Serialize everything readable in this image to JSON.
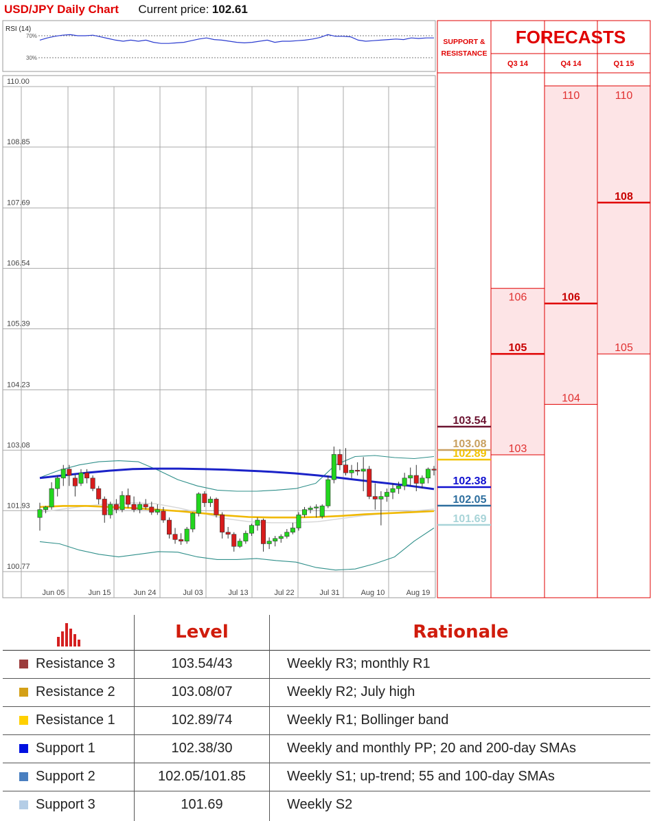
{
  "header": {
    "title": "USD/JPY Daily Chart",
    "price_label": "Current price:",
    "price_value": "102.61"
  },
  "rsi": {
    "label": "RSI (14)",
    "upper": "70%",
    "lower": "30%",
    "values": [
      62,
      66,
      69,
      71,
      72,
      70,
      70,
      71,
      68,
      65,
      62,
      60,
      62,
      60,
      62,
      58,
      56,
      56,
      57,
      58,
      61,
      64,
      66,
      63,
      62,
      60,
      58,
      57,
      58,
      60,
      62,
      58,
      60,
      60,
      61,
      62,
      64,
      67,
      72,
      69,
      69,
      68,
      62,
      60,
      61,
      62,
      63,
      64,
      63,
      66,
      65,
      66,
      66
    ],
    "color": "#2a3bd0"
  },
  "chart_data": {
    "type": "candlestick",
    "title": "USD/JPY Daily Chart",
    "y_ticks": [
      "110.00",
      "108.85",
      "107.69",
      "106.54",
      "105.39",
      "104.23",
      "103.08",
      "101.93",
      "100.77"
    ],
    "ylim": [
      100.77,
      110.0
    ],
    "x_ticks": [
      "Jun 05",
      "Jun 15",
      "Jun 24",
      "Jul 03",
      "Jul 13",
      "Jul 22",
      "Jul 31",
      "Aug 10",
      "Aug 19"
    ],
    "grid": true,
    "candles": [
      [
        101.8,
        102.08,
        101.55,
        101.95
      ],
      [
        101.95,
        102.02,
        101.88,
        102.0
      ],
      [
        102.0,
        102.47,
        101.95,
        102.35
      ],
      [
        102.35,
        102.6,
        102.2,
        102.55
      ],
      [
        102.55,
        102.8,
        102.4,
        102.72
      ],
      [
        102.72,
        102.8,
        102.4,
        102.6
      ],
      [
        102.55,
        102.62,
        102.2,
        102.4
      ],
      [
        102.45,
        102.72,
        102.4,
        102.65
      ],
      [
        102.65,
        102.72,
        102.45,
        102.55
      ],
      [
        102.55,
        102.6,
        102.3,
        102.35
      ],
      [
        102.35,
        102.4,
        102.05,
        102.15
      ],
      [
        102.15,
        102.2,
        101.7,
        101.85
      ],
      [
        101.85,
        102.1,
        101.78,
        102.05
      ],
      [
        102.05,
        102.15,
        101.88,
        101.95
      ],
      [
        101.95,
        102.3,
        101.9,
        102.22
      ],
      [
        102.22,
        102.35,
        101.98,
        102.05
      ],
      [
        102.05,
        102.2,
        101.9,
        101.95
      ],
      [
        101.95,
        102.1,
        101.88,
        102.05
      ],
      [
        102.05,
        102.15,
        101.95,
        102.0
      ],
      [
        102.0,
        102.1,
        101.85,
        101.9
      ],
      [
        101.9,
        102.05,
        101.85,
        101.95
      ],
      [
        101.92,
        102.0,
        101.7,
        101.75
      ],
      [
        101.75,
        101.8,
        101.4,
        101.48
      ],
      [
        101.48,
        101.6,
        101.3,
        101.38
      ],
      [
        101.38,
        101.5,
        101.28,
        101.35
      ],
      [
        101.35,
        101.62,
        101.3,
        101.58
      ],
      [
        101.58,
        101.9,
        101.52,
        101.88
      ],
      [
        101.88,
        102.28,
        101.82,
        102.25
      ],
      [
        102.25,
        102.3,
        102.0,
        102.08
      ],
      [
        102.08,
        102.2,
        102.0,
        102.15
      ],
      [
        102.15,
        102.18,
        101.8,
        101.85
      ],
      [
        101.85,
        101.9,
        101.4,
        101.52
      ],
      [
        101.52,
        101.62,
        101.4,
        101.48
      ],
      [
        101.48,
        101.52,
        101.15,
        101.25
      ],
      [
        101.25,
        101.4,
        101.22,
        101.35
      ],
      [
        101.35,
        101.55,
        101.3,
        101.5
      ],
      [
        101.5,
        101.68,
        101.45,
        101.65
      ],
      [
        101.65,
        101.8,
        101.55,
        101.75
      ],
      [
        101.75,
        101.78,
        101.15,
        101.3
      ],
      [
        101.3,
        101.42,
        101.2,
        101.35
      ],
      [
        101.35,
        101.45,
        101.25,
        101.4
      ],
      [
        101.4,
        101.48,
        101.32,
        101.44
      ],
      [
        101.44,
        101.58,
        101.4,
        101.52
      ],
      [
        101.52,
        101.7,
        101.48,
        101.6
      ],
      [
        101.6,
        101.9,
        101.55,
        101.85
      ],
      [
        101.85,
        102.0,
        101.8,
        101.95
      ],
      [
        101.95,
        102.02,
        101.88,
        101.98
      ],
      [
        101.98,
        102.05,
        101.8,
        102.0
      ],
      [
        101.82,
        102.05,
        101.78,
        102.02
      ],
      [
        102.02,
        102.6,
        101.98,
        102.52
      ],
      [
        102.52,
        103.15,
        102.45,
        103.0
      ],
      [
        103.0,
        103.1,
        102.7,
        102.8
      ],
      [
        102.8,
        103.12,
        102.6,
        102.65
      ],
      [
        102.65,
        102.8,
        102.55,
        102.7
      ],
      [
        102.7,
        102.85,
        102.6,
        102.68
      ],
      [
        102.68,
        102.95,
        102.3,
        102.72
      ],
      [
        102.72,
        102.78,
        102.15,
        102.2
      ],
      [
        102.2,
        102.45,
        101.95,
        102.15
      ],
      [
        102.15,
        102.3,
        101.65,
        102.2
      ],
      [
        102.2,
        102.35,
        102.1,
        102.28
      ],
      [
        102.28,
        102.45,
        102.15,
        102.35
      ],
      [
        102.35,
        102.48,
        102.25,
        102.4
      ],
      [
        102.4,
        102.65,
        102.32,
        102.55
      ],
      [
        102.55,
        102.75,
        102.4,
        102.6
      ],
      [
        102.6,
        102.8,
        102.3,
        102.45
      ],
      [
        102.45,
        102.6,
        102.35,
        102.55
      ],
      [
        102.55,
        102.75,
        102.45,
        102.72
      ],
      [
        102.72,
        102.78,
        102.6,
        102.7
      ]
    ],
    "sma_blue": [
      102.55,
      102.6,
      102.65,
      102.69,
      102.72,
      102.73,
      102.73,
      102.72,
      102.71,
      102.69,
      102.67,
      102.64,
      102.6,
      102.55,
      102.5,
      102.45,
      102.4,
      102.34
    ],
    "sma_yellow": [
      102.0,
      102.02,
      102.02,
      102.0,
      101.98,
      101.95,
      101.92,
      101.88,
      101.84,
      101.81,
      101.8,
      101.8,
      101.81,
      101.83,
      101.86,
      101.88,
      101.9,
      101.92
    ],
    "sma_gray": [
      101.9,
      101.96,
      102.02,
      102.06,
      102.08,
      102.06,
      101.98,
      101.88,
      101.78,
      101.72,
      101.7,
      101.7,
      101.72,
      101.78,
      101.84,
      101.88,
      101.92,
      101.96
    ],
    "bb_upper": [
      102.56,
      102.7,
      102.8,
      102.86,
      102.88,
      102.86,
      102.7,
      102.52,
      102.4,
      102.32,
      102.3,
      102.3,
      102.32,
      102.35,
      102.45,
      102.8,
      102.96,
      102.98,
      102.94,
      102.92,
      102.96
    ],
    "bb_lower": [
      101.34,
      101.3,
      101.18,
      101.1,
      101.05,
      101.1,
      101.15,
      101.14,
      101.05,
      101.0,
      101.0,
      101.02,
      100.98,
      100.95,
      100.85,
      100.8,
      100.82,
      100.92,
      101.05,
      101.35,
      101.6
    ],
    "support_resistance": [
      {
        "label": "103.54",
        "value": 103.54,
        "color": "#6b1330"
      },
      {
        "label": "103.08",
        "value": 103.08,
        "color": "#c8a060"
      },
      {
        "label": "102.89",
        "value": 102.89,
        "color": "#f2c200"
      },
      {
        "label": "102.38",
        "value": 102.38,
        "color": "#1010d0"
      },
      {
        "label": "102.05",
        "value": 102.05,
        "color": "#2d6e9e"
      },
      {
        "label": "101.69",
        "value": 101.69,
        "color": "#a8d4d8"
      }
    ]
  },
  "forecast_panel": {
    "sr_header": "SUPPORT & RESISTANCE",
    "title": "FORECASTS",
    "columns": [
      {
        "label": "Q3 14",
        "range": [
          103,
          106
        ],
        "most_likely": 105,
        "labels": [
          "106",
          "105",
          "103"
        ]
      },
      {
        "label": "Q4 14",
        "range": [
          104,
          110
        ],
        "most_likely": 106,
        "labels": [
          "110",
          "106",
          "104"
        ]
      },
      {
        "label": "Q1 15",
        "range": [
          105,
          110
        ],
        "most_likely": 108,
        "labels": [
          "110",
          "108",
          "105"
        ]
      }
    ],
    "highlight_color": "#fde4e6",
    "line_color": "#e00000"
  },
  "table": {
    "headers": {
      "level": "Level",
      "rationale": "Rationale"
    },
    "header_icon": "bar-chart-icon",
    "rows": [
      {
        "name": "Resistance 3",
        "color": "#9c3c3c",
        "level": "103.54/43",
        "rationale": "Weekly R3; monthly R1"
      },
      {
        "name": "Resistance 2",
        "color": "#d4a017",
        "level": "103.08/07",
        "rationale": "Weekly R2; July high"
      },
      {
        "name": "Resistance 1",
        "color": "#ffd000",
        "level": "102.89/74",
        "rationale": "Weekly R1; Bollinger band"
      },
      {
        "name": "Support 1",
        "color": "#0010e0",
        "level": "102.38/30",
        "rationale": "Weekly and monthly PP; 20 and 200-day SMAs"
      },
      {
        "name": "Support 2",
        "color": "#4a7fc0",
        "level": "102.05/101.85",
        "rationale": "Weekly S1; up-trend; 55 and 100-day SMAs"
      },
      {
        "name": "Support 3",
        "color": "#b4cde6",
        "level": "101.69",
        "rationale": "Weekly S2"
      }
    ]
  }
}
